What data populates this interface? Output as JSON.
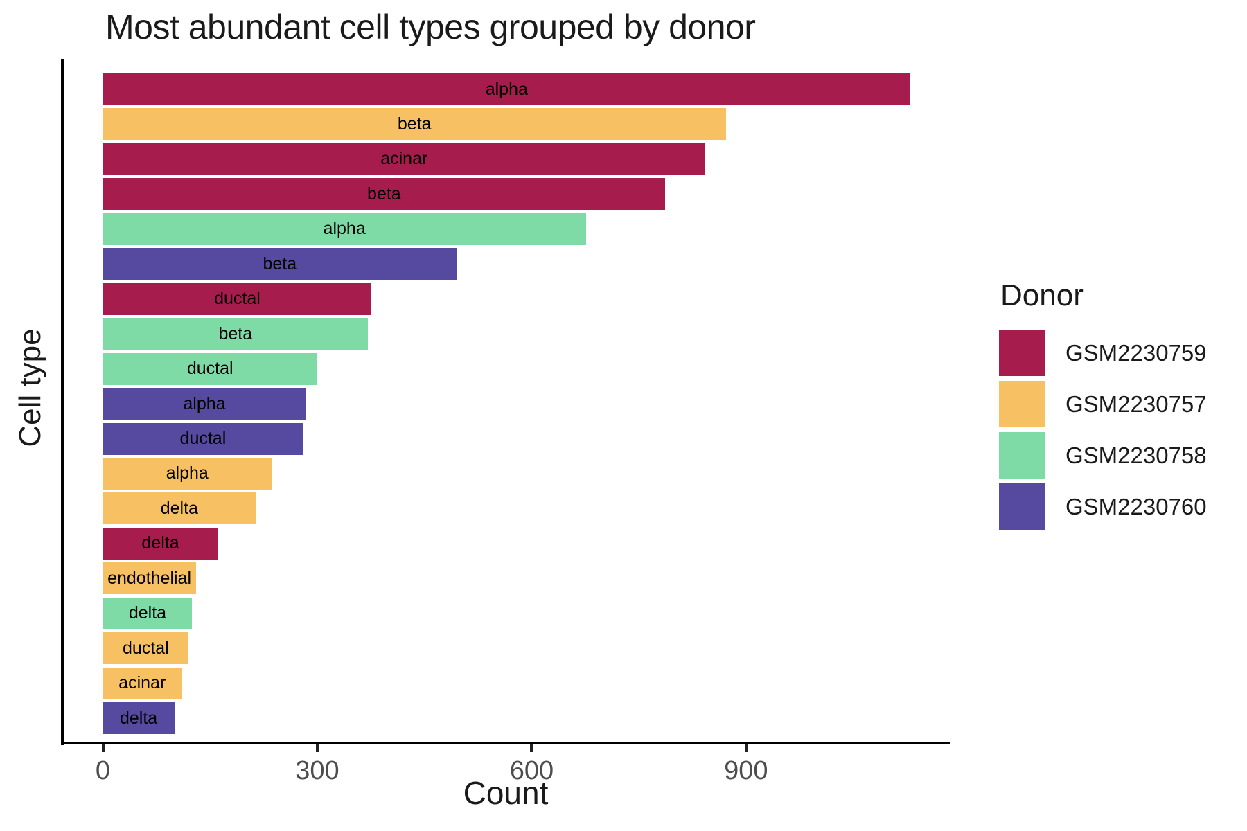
{
  "title": "Most abundant cell types grouped by donor",
  "axes": {
    "x_label": "Count",
    "y_label": "Cell type",
    "x_ticks": [
      0,
      300,
      600,
      900
    ]
  },
  "legend": {
    "title": "Donor",
    "entries": [
      {
        "label": "GSM2230759",
        "color": "#A61C4D"
      },
      {
        "label": "GSM2230757",
        "color": "#F7C163"
      },
      {
        "label": "GSM2230758",
        "color": "#7EDBA6"
      },
      {
        "label": "GSM2230760",
        "color": "#564AA0"
      }
    ]
  },
  "chart_data": {
    "type": "bar",
    "orientation": "horizontal",
    "title": "Most abundant cell types grouped by donor",
    "xlabel": "Count",
    "ylabel": "Cell type",
    "x_ticks": [
      0,
      300,
      600,
      900
    ],
    "xlim": [
      0,
      1186
    ],
    "grid": false,
    "legend_position": "right",
    "legend_title": "Donor",
    "bars": [
      {
        "cell_type": "alpha",
        "donor": "GSM2230759",
        "count": 1130
      },
      {
        "cell_type": "beta",
        "donor": "GSM2230757",
        "count": 872
      },
      {
        "cell_type": "acinar",
        "donor": "GSM2230759",
        "count": 843
      },
      {
        "cell_type": "beta",
        "donor": "GSM2230759",
        "count": 787
      },
      {
        "cell_type": "alpha",
        "donor": "GSM2230758",
        "count": 676
      },
      {
        "cell_type": "beta",
        "donor": "GSM2230760",
        "count": 495
      },
      {
        "cell_type": "ductal",
        "donor": "GSM2230759",
        "count": 376
      },
      {
        "cell_type": "beta",
        "donor": "GSM2230758",
        "count": 371
      },
      {
        "cell_type": "ductal",
        "donor": "GSM2230758",
        "count": 300
      },
      {
        "cell_type": "alpha",
        "donor": "GSM2230760",
        "count": 284
      },
      {
        "cell_type": "ductal",
        "donor": "GSM2230760",
        "count": 280
      },
      {
        "cell_type": "alpha",
        "donor": "GSM2230757",
        "count": 236
      },
      {
        "cell_type": "delta",
        "donor": "GSM2230757",
        "count": 214
      },
      {
        "cell_type": "delta",
        "donor": "GSM2230759",
        "count": 161
      },
      {
        "cell_type": "endothelial",
        "donor": "GSM2230757",
        "count": 130
      },
      {
        "cell_type": "delta",
        "donor": "GSM2230758",
        "count": 125
      },
      {
        "cell_type": "ductal",
        "donor": "GSM2230757",
        "count": 120
      },
      {
        "cell_type": "acinar",
        "donor": "GSM2230757",
        "count": 110
      },
      {
        "cell_type": "delta",
        "donor": "GSM2230760",
        "count": 100
      }
    ]
  }
}
